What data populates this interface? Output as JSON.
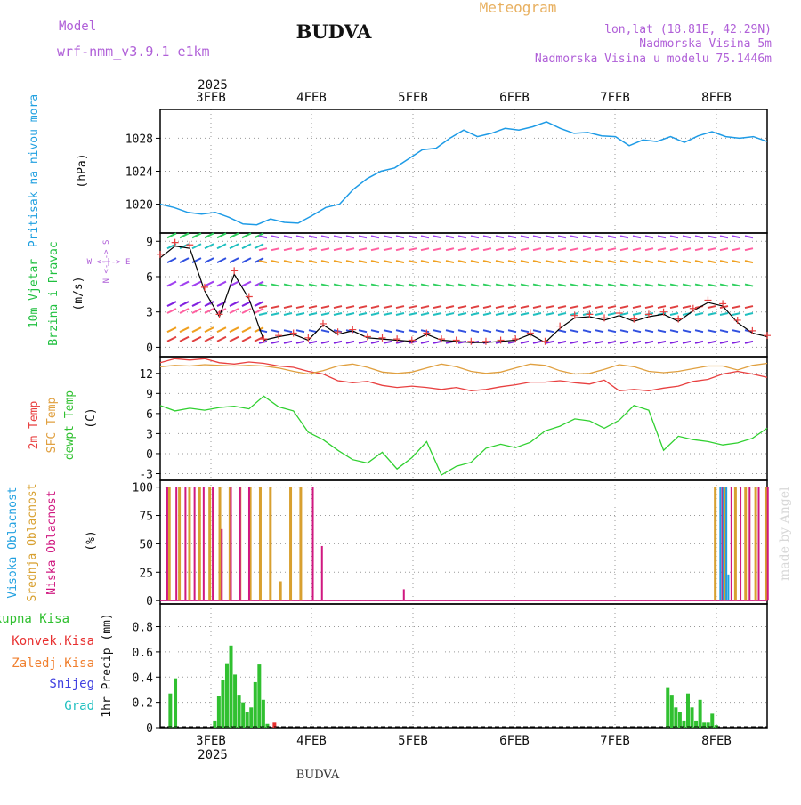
{
  "header": {
    "model_label": "Model",
    "model_name": "wrf-nmm_v3.9.1  e1km",
    "station": "BUDVA",
    "product": "Meteogram",
    "coords": "lon,lat (18.81E, 42.29N)",
    "elevation": "Nadmorska Visina 5m",
    "model_elevation": "Nadmorska Visina u modelu 75.1446m",
    "year": "2025",
    "footer_station": "BUDVA",
    "watermark": "made by Angel"
  },
  "colors": {
    "pressure": "#1e9be6",
    "wind_label": "#20c040",
    "temp2m": "#e84040",
    "sfc": "#e0a040",
    "dewpt": "#30d030",
    "high_cloud": "#20a0e0",
    "mid_cloud": "#d8a030",
    "low_cloud": "#d01880",
    "precip_total": "#30c030",
    "precip_conv": "#e83030",
    "precip_frozen": "#f08030",
    "precip_snow": "#4040e0",
    "precip_grad": "#20c0c0"
  },
  "chart_data": [
    {
      "type": "line",
      "panel": "pressure",
      "ylabel_name": "Pritisak na nivou mora",
      "ylabel_unit": "(hPa)",
      "x_ticks": [
        "3FEB",
        "4FEB",
        "5FEB",
        "6FEB",
        "7FEB",
        "8FEB"
      ],
      "y_ticks": [
        1020,
        1024,
        1028
      ],
      "ylim": [
        1016.5,
        1031.5
      ],
      "grid": true,
      "series": [
        {
          "values": [
            1020.0,
            1019.6,
            1019.0,
            1018.8,
            1019.0,
            1018.4,
            1017.6,
            1017.5,
            1018.2,
            1017.8,
            1017.7,
            1018.6,
            1019.6,
            1020.0,
            1021.8,
            1023.1,
            1024.0,
            1024.4,
            1025.5,
            1026.6,
            1026.8,
            1028.0,
            1029.0,
            1028.2,
            1028.6,
            1029.2,
            1029.0,
            1029.4,
            1030.0,
            1029.2,
            1028.6,
            1028.7,
            1028.3,
            1028.2,
            1027.1,
            1027.8,
            1027.6,
            1028.2,
            1027.5,
            1028.3,
            1028.8,
            1028.2,
            1028.0,
            1028.2,
            1027.6
          ]
        }
      ]
    },
    {
      "type": "line",
      "panel": "wind",
      "ylabel_name_1": "10m Vjetar",
      "ylabel_name_2": "Brzina i Pravac",
      "ylabel_unit": "(m/s)",
      "compass_ns": "N <-|-> S",
      "compass_we": "W <-|-> E",
      "y_ticks": [
        0,
        3,
        6,
        9
      ],
      "ylim": [
        -0.8,
        9.7
      ],
      "grid": true,
      "series": [
        {
          "values": [
            7.6,
            8.6,
            8.4,
            4.8,
            2.6,
            6.2,
            4.1,
            0.6,
            0.9,
            1.1,
            0.6,
            1.9,
            1.1,
            1.4,
            0.8,
            0.7,
            0.6,
            0.5,
            1.1,
            0.6,
            0.5,
            0.4,
            0.4,
            0.5,
            0.6,
            1.1,
            0.4,
            1.6,
            2.5,
            2.6,
            2.3,
            2.7,
            2.2,
            2.6,
            2.8,
            2.2,
            3.1,
            3.8,
            3.5,
            2.1,
            1.2,
            0.9
          ]
        },
        {
          "values": [
            7.9,
            8.9,
            8.7,
            5.1,
            2.8,
            6.5,
            4.3,
            0.7,
            1.0,
            1.2,
            0.8,
            2.0,
            1.3,
            1.5,
            0.9,
            0.8,
            0.7,
            0.6,
            1.2,
            0.7,
            0.6,
            0.5,
            0.5,
            0.6,
            0.7,
            1.2,
            0.5,
            1.8,
            2.7,
            2.8,
            2.5,
            2.9,
            2.4,
            2.8,
            3.0,
            2.4,
            3.3,
            4.0,
            3.7,
            2.3,
            1.4,
            1.0
          ]
        }
      ]
    },
    {
      "type": "line",
      "panel": "temperature",
      "ylabel_name_1": "2m Temp",
      "ylabel_name_2": "SFC Temp",
      "ylabel_name_3": "dewpt Temp",
      "ylabel_unit": "(C)",
      "y_ticks": [
        -3,
        0,
        3,
        6,
        9,
        12
      ],
      "ylim": [
        -4,
        14.5
      ],
      "grid": true,
      "series": [
        {
          "values": [
            13.6,
            14.2,
            14.0,
            14.2,
            13.6,
            13.4,
            13.7,
            13.5,
            13.1,
            12.9,
            12.3,
            11.9,
            10.9,
            10.6,
            10.8,
            10.2,
            9.9,
            10.1,
            9.9,
            9.6,
            9.9,
            9.4,
            9.6,
            10.0,
            10.3,
            10.7,
            10.7,
            10.9,
            10.6,
            10.4,
            11.0,
            9.4,
            9.6,
            9.4,
            9.8,
            10.1,
            10.8,
            11.1,
            11.9,
            12.3,
            11.9,
            11.4
          ]
        },
        {
          "values": [
            13.0,
            13.2,
            13.1,
            13.3,
            13.2,
            13.1,
            13.2,
            13.1,
            12.8,
            12.3,
            11.9,
            12.4,
            13.1,
            13.4,
            12.9,
            12.2,
            12.0,
            12.2,
            12.8,
            13.4,
            13.0,
            12.3,
            12.0,
            12.2,
            12.8,
            13.4,
            13.2,
            12.4,
            11.9,
            12.0,
            12.6,
            13.3,
            13.0,
            12.3,
            12.1,
            12.3,
            12.7,
            13.1,
            13.1,
            12.5,
            13.2,
            13.5
          ]
        },
        {
          "values": [
            7.2,
            6.4,
            6.8,
            6.5,
            6.9,
            7.1,
            6.7,
            8.6,
            7.0,
            6.4,
            3.2,
            2.1,
            0.5,
            -0.9,
            -1.4,
            0.2,
            -2.3,
            -0.6,
            1.8,
            -3.2,
            -1.9,
            -1.3,
            0.8,
            1.4,
            0.9,
            1.7,
            3.4,
            4.1,
            5.2,
            4.9,
            3.8,
            5.0,
            7.2,
            6.5,
            0.5,
            2.6,
            2.1,
            1.8,
            1.3,
            1.6,
            2.3,
            3.8
          ]
        }
      ]
    },
    {
      "type": "bar",
      "panel": "cloud",
      "ylabel_name_1": "Visoka Oblacnost",
      "ylabel_name_2": "Srednja Oblacnost",
      "ylabel_name_3": "Niska Oblacnost",
      "ylabel_unit": "(%)",
      "y_ticks": [
        0,
        25,
        50,
        75,
        100
      ],
      "ylim": [
        -3,
        106
      ],
      "grid": true,
      "low_cloud": {
        "x": [
          0.03,
          0.12,
          0.21,
          0.3,
          0.39,
          0.48,
          0.57,
          0.66,
          0.75,
          0.84,
          0.93,
          1.02,
          1.11,
          1.2,
          1.29,
          1.38,
          1.47,
          1.56,
          1.65,
          1.74,
          1.83,
          1.92,
          2.01,
          2.1,
          2.19,
          2.28,
          2.37,
          2.46,
          2.55,
          2.64,
          2.73,
          2.82,
          2.91,
          3.0,
          3.09,
          3.18,
          3.27,
          3.36,
          3.45,
          3.54,
          3.63,
          3.72,
          3.81,
          3.9,
          3.99,
          4.08,
          4.17,
          4.26,
          4.35,
          4.44,
          4.53,
          4.62,
          4.71,
          4.8,
          4.89,
          4.98,
          5.07,
          5.16,
          5.25,
          5.34,
          5.43,
          5.52,
          5.61,
          5.7,
          5.79,
          5.88,
          5.97
        ],
        "values": [
          100,
          100,
          100,
          100,
          100,
          100,
          63,
          100,
          100,
          100,
          0,
          0,
          0,
          0,
          0,
          0,
          100,
          48,
          0,
          0,
          0,
          0,
          0,
          0,
          0,
          0,
          10,
          0,
          0,
          0,
          0,
          0,
          0,
          0,
          0,
          0,
          0,
          0,
          0,
          0,
          0,
          0,
          0,
          0,
          0,
          0,
          0,
          0,
          0,
          0,
          0,
          0,
          0,
          0,
          0,
          0,
          0,
          0,
          0,
          0,
          0,
          100,
          100,
          100,
          100,
          100,
          100
        ]
      },
      "mid_cloud": {
        "x": [
          0.05,
          0.15,
          0.25,
          0.35,
          0.45,
          0.55,
          0.65,
          0.75,
          0.85,
          0.95,
          1.05,
          1.15,
          1.25,
          1.35,
          1.45,
          1.55,
          1.65,
          1.75,
          1.85,
          1.95,
          2.05,
          2.15,
          2.25,
          2.35,
          2.45,
          2.55,
          2.65,
          2.75,
          2.85,
          2.95,
          3.05,
          3.15,
          3.25,
          3.35,
          3.45,
          3.55,
          3.65,
          3.75,
          3.85,
          3.95,
          4.05,
          4.15,
          4.25,
          4.35,
          4.45,
          4.55,
          4.65,
          4.75,
          4.85,
          4.95,
          5.05,
          5.15,
          5.25,
          5.35,
          5.45,
          5.55,
          5.65,
          5.75,
          5.85,
          5.95
        ],
        "values": [
          100,
          100,
          100,
          100,
          100,
          100,
          100,
          100,
          100,
          100,
          100,
          17,
          100,
          100,
          0,
          0,
          0,
          0,
          0,
          0,
          0,
          0,
          0,
          0,
          0,
          0,
          0,
          0,
          0,
          0,
          0,
          0,
          0,
          0,
          0,
          0,
          0,
          0,
          0,
          0,
          0,
          0,
          0,
          0,
          0,
          0,
          0,
          0,
          0,
          0,
          0,
          0,
          0,
          0,
          100,
          100,
          100,
          100,
          100,
          100
        ]
      },
      "high_cloud": {
        "x": [
          5.5,
          5.53,
          5.56,
          5.58
        ],
        "values": [
          100,
          100,
          100,
          23
        ]
      }
    },
    {
      "type": "bar",
      "panel": "precip",
      "legend": [
        "Ukupna Kisa",
        "Konvek.Kisa",
        "Zaledj.Kisa",
        "Snijeg",
        "Grad"
      ],
      "ylabel": "1hr Precip (mm)",
      "x_ticks": [
        "3FEB",
        "4FEB",
        "5FEB",
        "6FEB",
        "7FEB",
        "8FEB"
      ],
      "y_ticks": [
        0,
        0.2,
        0.4,
        0.6,
        0.8
      ],
      "ylim": [
        0,
        0.98
      ],
      "grid": true,
      "total": {
        "x": [
          0.06,
          0.11,
          0.5,
          0.54,
          0.58,
          0.62,
          0.66,
          0.7,
          0.74,
          0.78,
          0.82,
          0.86,
          0.9,
          0.94,
          0.98,
          1.02,
          4.98,
          5.02,
          5.06,
          5.1,
          5.14,
          5.18,
          5.22,
          5.26,
          5.3,
          5.34,
          5.38,
          5.42,
          5.46
        ],
        "values": [
          0.27,
          0.39,
          0.05,
          0.25,
          0.38,
          0.51,
          0.65,
          0.42,
          0.26,
          0.2,
          0.12,
          0.16,
          0.36,
          0.5,
          0.22,
          0.03,
          0.32,
          0.26,
          0.16,
          0.12,
          0.05,
          0.27,
          0.16,
          0.05,
          0.22,
          0.04,
          0.04,
          0.11,
          0.02
        ]
      },
      "convective": {
        "x": [
          1.09
        ],
        "values": [
          0.04
        ]
      }
    }
  ]
}
